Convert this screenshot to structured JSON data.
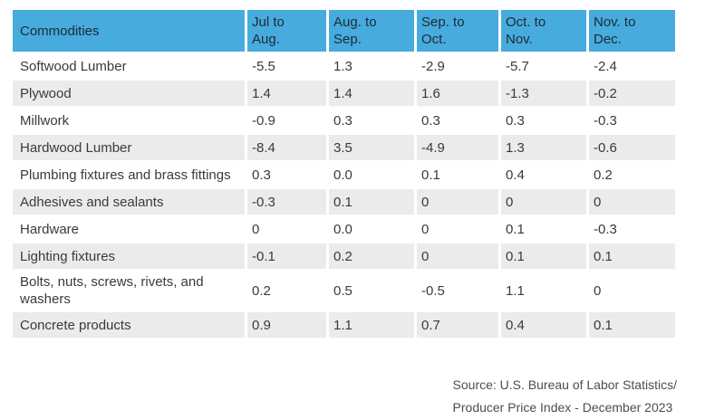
{
  "chart_data": {
    "type": "table",
    "title": "",
    "columns": [
      "Commodities",
      "Jul to Aug.",
      "Aug. to Sep.",
      "Sep. to Oct.",
      "Oct. to Nov.",
      "Nov. to Dec."
    ],
    "rows": [
      [
        "Softwood Lumber",
        "-5.5",
        "1.3",
        "-2.9",
        "-5.7",
        "-2.4"
      ],
      [
        "Plywood",
        "1.4",
        "1.4",
        "1.6",
        "-1.3",
        "-0.2"
      ],
      [
        "Millwork",
        "-0.9",
        "0.3",
        "0.3",
        "0.3",
        "-0.3"
      ],
      [
        "Hardwood Lumber",
        "-8.4",
        "3.5",
        "-4.9",
        "1.3",
        "-0.6"
      ],
      [
        "Plumbing fixtures and brass fittings",
        "0.3",
        "0.0",
        "0.1",
        "0.4",
        "0.2"
      ],
      [
        "Adhesives and sealants",
        "-0.3",
        "0.1",
        "0",
        "0",
        "0"
      ],
      [
        "Hardware",
        "0",
        "0.0",
        "0",
        "0.1",
        "-0.3"
      ],
      [
        "Lighting fixtures",
        "-0.1",
        "0.2",
        "0",
        "0.1",
        "0.1"
      ],
      [
        "Bolts, nuts, screws, rivets, and washers",
        "0.2",
        "0.5",
        "-0.5",
        "1.1",
        "0"
      ],
      [
        "Concrete products",
        "0.9",
        "1.1",
        "0.7",
        "0.4",
        "0.1"
      ]
    ],
    "source_lines": [
      "Source: U.S. Bureau of Labor Statistics/",
      "Producer Price Index - December 2023"
    ]
  },
  "colors": {
    "header_bg": "#47abdd",
    "header_text": "#1c2b36",
    "row_alt_bg": "#ebebeb",
    "row_bg": "#ffffff",
    "body_text": "#3a3a3a",
    "source_text": "#4d4d4d"
  }
}
